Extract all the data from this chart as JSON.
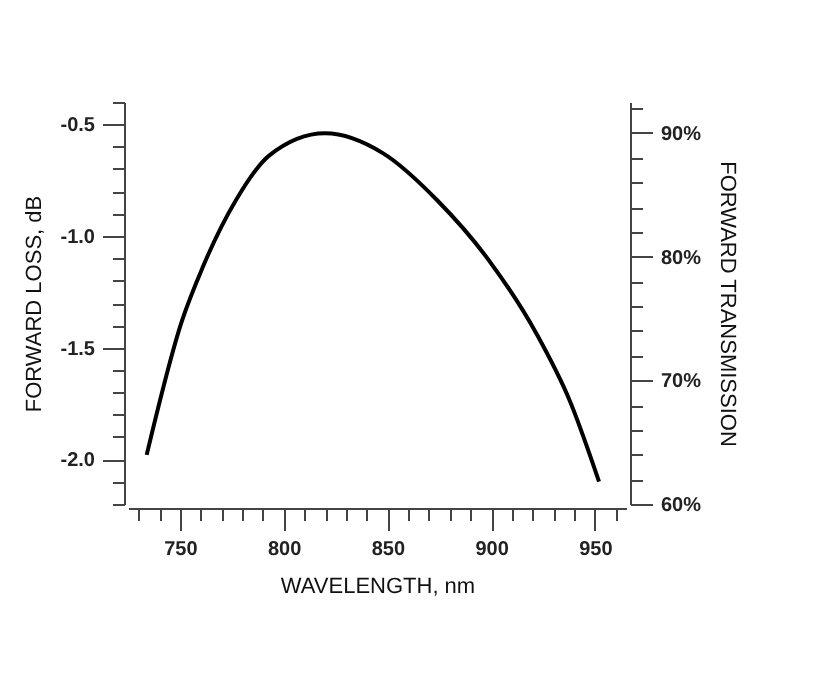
{
  "chart_data": {
    "type": "line",
    "xlabel": "WAVELENGTH, nm",
    "ylabel": "FORWARD LOSS, dB",
    "y2label": "FORWARD TRANSMISSION",
    "x": [
      734,
      751,
      761,
      777,
      793,
      820,
      848,
      874,
      899,
      922,
      938,
      952
    ],
    "series": [
      {
        "color": "#000000",
        "values": [
          -1.98,
          -1.38,
          -1.14,
          -0.84,
          -0.64,
          -0.54,
          -0.63,
          -0.84,
          -1.11,
          -1.44,
          -1.74,
          -2.1
        ]
      }
    ],
    "xlim": [
      725,
      965
    ],
    "xticks": [
      {
        "value": 730,
        "label": null
      },
      {
        "value": 740,
        "label": null
      },
      750,
      {
        "value": 760,
        "label": null
      },
      {
        "value": 770,
        "label": null
      },
      {
        "value": 780,
        "label": null
      },
      {
        "value": 790,
        "label": null
      },
      800,
      {
        "value": 810,
        "label": null
      },
      {
        "value": 820,
        "label": null
      },
      {
        "value": 830,
        "label": null
      },
      {
        "value": 840,
        "label": null
      },
      850,
      {
        "value": 860,
        "label": null
      },
      {
        "value": 870,
        "label": null
      },
      {
        "value": 880,
        "label": null
      },
      {
        "value": 890,
        "label": null
      },
      900,
      {
        "value": 910,
        "label": null
      },
      {
        "value": 920,
        "label": null
      },
      {
        "value": 930,
        "label": null
      },
      {
        "value": 940,
        "label": null
      },
      950,
      {
        "value": 960,
        "label": null
      }
    ],
    "ylim": [
      -2.2,
      -0.4
    ],
    "yticks": [
      {
        "value": -2.2,
        "label": null
      },
      {
        "value": -2.1,
        "label": null
      },
      {
        "value": -2.0,
        "label": "-2.0"
      },
      {
        "value": -1.9,
        "label": null
      },
      {
        "value": -1.8,
        "label": null
      },
      {
        "value": -1.7,
        "label": null
      },
      {
        "value": -1.6,
        "label": null
      },
      -1.5,
      {
        "value": -1.4,
        "label": null
      },
      {
        "value": -1.3,
        "label": null
      },
      {
        "value": -1.2,
        "label": null
      },
      {
        "value": -1.1,
        "label": null
      },
      {
        "value": -1.0,
        "label": "-1.0"
      },
      {
        "value": -0.9,
        "label": null
      },
      {
        "value": -0.8,
        "label": null
      },
      {
        "value": -0.7,
        "label": null
      },
      {
        "value": -0.6,
        "label": null
      },
      -0.5,
      {
        "value": -0.4,
        "label": null
      }
    ],
    "y2lim": [
      60,
      92.5
    ],
    "y2ticks": [
      {
        "value": 60,
        "label": "60%"
      },
      {
        "value": 62,
        "label": null
      },
      {
        "value": 64,
        "label": null
      },
      {
        "value": 66,
        "label": null
      },
      {
        "value": 68,
        "label": null
      },
      {
        "value": 70,
        "label": "70%"
      },
      {
        "value": 72,
        "label": null
      },
      {
        "value": 74,
        "label": null
      },
      {
        "value": 76,
        "label": null
      },
      {
        "value": 78,
        "label": null
      },
      {
        "value": 80,
        "label": "80%"
      },
      {
        "value": 82,
        "label": null
      },
      {
        "value": 84,
        "label": null
      },
      {
        "value": 86,
        "label": null
      },
      {
        "value": 88,
        "label": null
      },
      {
        "value": 90,
        "label": "90%"
      },
      {
        "value": 92,
        "label": null
      }
    ],
    "grid": false,
    "marker": "none",
    "line_style": "solid"
  }
}
